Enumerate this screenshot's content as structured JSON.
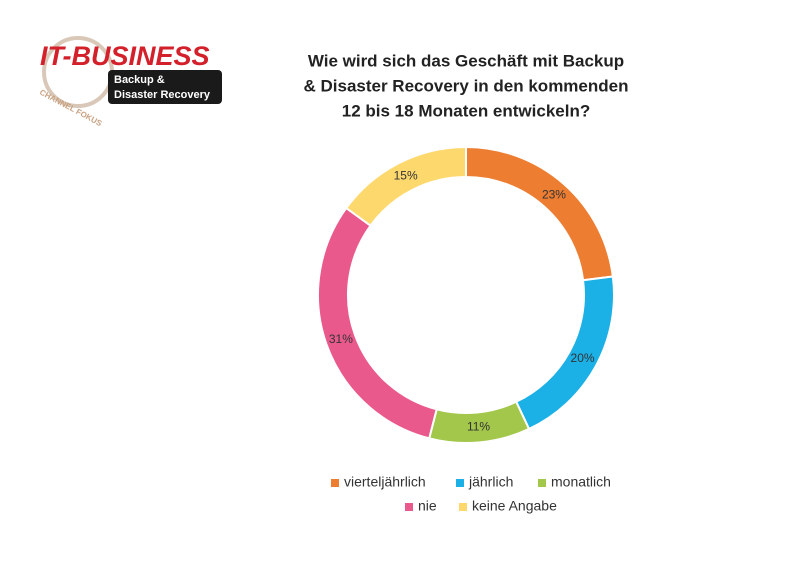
{
  "logo": {
    "brand": "IT-BUSINESS",
    "channel": "CHANNEL FOKUS",
    "topic": [
      "Backup &",
      "Disaster Recovery"
    ]
  },
  "chart_data": {
    "type": "donut",
    "title": [
      "Wie wird sich das Geschäft mit Backup",
      "& Disaster Recovery in den kommenden",
      "12 bis 18 Monaten entwickeln?"
    ],
    "categories": [
      "vierteljährlich",
      "jährlich",
      "monatlich",
      "nie",
      "keine Angabe"
    ],
    "values": [
      23,
      20,
      11,
      31,
      15
    ],
    "value_labels": [
      "23%",
      "20%",
      "11%",
      "31%",
      "15%"
    ],
    "colors": [
      "#ed7d31",
      "#1bb0e6",
      "#a3c74b",
      "#e9598b",
      "#fdd86d"
    ],
    "legend": "bottom"
  }
}
